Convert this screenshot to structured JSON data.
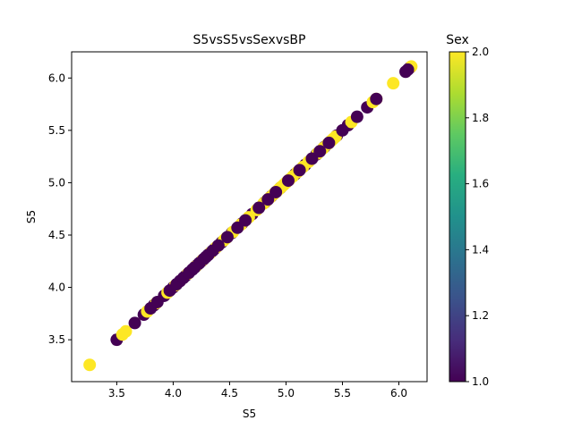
{
  "chart_data": {
    "type": "scatter",
    "title": "S5vsS5vsSexvsBP",
    "xlabel": "S5",
    "ylabel": "S5",
    "xlim": [
      3.1,
      6.25
    ],
    "ylim": [
      3.1,
      6.25
    ],
    "xticks": [
      "3.5",
      "4.0",
      "4.5",
      "5.0",
      "5.5",
      "6.0"
    ],
    "yticks": [
      "3.5",
      "4.0",
      "4.5",
      "5.0",
      "5.5",
      "6.0"
    ],
    "colorbar": {
      "label": "Sex",
      "range": [
        1.0,
        2.0
      ],
      "ticks": [
        "1.0",
        "1.2",
        "1.4",
        "1.6",
        "1.8",
        "2.0"
      ],
      "colormap": "viridis"
    },
    "grid": false,
    "series": [
      {
        "color_value": 1,
        "color": "#440154",
        "x": [
          3.5,
          3.66,
          3.74,
          3.8,
          3.83,
          3.86,
          3.92,
          3.97,
          4.0,
          4.03,
          4.06,
          4.09,
          4.11,
          4.14,
          4.17,
          4.19,
          4.21,
          4.23,
          4.25,
          4.27,
          4.29,
          4.31,
          4.33,
          4.35,
          4.37,
          4.4,
          4.43,
          4.48,
          4.52,
          4.57,
          4.61,
          4.64,
          4.7,
          4.76,
          4.81,
          4.84,
          4.87,
          4.91,
          4.95,
          5.02,
          5.08,
          5.12,
          5.17,
          5.23,
          5.27,
          5.3,
          5.34,
          5.38,
          5.45,
          5.5,
          5.55,
          5.63,
          5.72,
          5.8,
          6.06,
          6.08,
          6.1
        ]
      },
      {
        "color_value": 2,
        "color": "#fde725",
        "x": [
          3.26,
          3.55,
          3.58,
          3.77,
          3.85,
          3.95,
          4.02,
          4.13,
          4.2,
          4.26,
          4.33,
          4.38,
          4.45,
          4.47,
          4.53,
          4.6,
          4.67,
          4.74,
          4.8,
          4.83,
          4.86,
          4.89,
          4.92,
          4.94,
          4.96,
          4.98,
          5.0,
          5.03,
          5.06,
          5.1,
          5.15,
          5.2,
          5.28,
          5.33,
          5.37,
          5.4,
          5.42,
          5.44,
          5.58,
          5.77,
          5.8,
          5.95,
          6.11
        ]
      }
    ]
  }
}
